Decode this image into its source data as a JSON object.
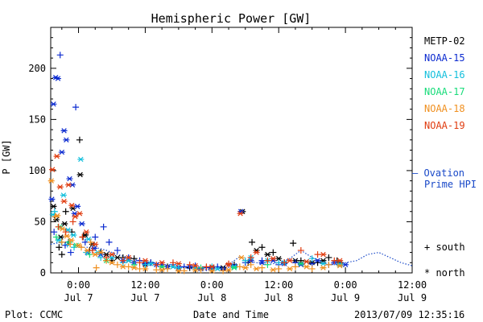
{
  "chart_data": {
    "type": "scatter",
    "title": "Hemispheric Power [GW]",
    "xlabel": "Date and Time",
    "ylabel": "P [GW]",
    "ylim": [
      0,
      240
    ],
    "yticks": [
      0,
      50,
      100,
      150,
      200
    ],
    "xlim_hours_from_jul7": [
      -5,
      60
    ],
    "xticks": [
      {
        "time": "0:00",
        "date": "Jul 7",
        "hour": 0
      },
      {
        "time": "12:00",
        "date": "Jul 7",
        "hour": 12
      },
      {
        "time": "0:00",
        "date": "Jul 8",
        "hour": 24
      },
      {
        "time": "12:00",
        "date": "Jul 8",
        "hour": 36
      },
      {
        "time": "0:00",
        "date": "Jul 9",
        "hour": 48
      },
      {
        "time": "12:00",
        "date": "Jul 9",
        "hour": 60
      }
    ],
    "series": [
      {
        "name": "METP-02",
        "color": "#000000",
        "south": [
          [
            -4.2,
            55
          ],
          [
            -3.5,
            25
          ],
          [
            -3.0,
            18
          ],
          [
            -2.3,
            60
          ],
          [
            -1.8,
            30
          ],
          [
            -1.2,
            40
          ],
          [
            0.2,
            130
          ],
          [
            0.8,
            35
          ],
          [
            2,
            22
          ],
          [
            4,
            20
          ],
          [
            6,
            12
          ],
          [
            8,
            15
          ],
          [
            10,
            14
          ],
          [
            13,
            10
          ],
          [
            16,
            6
          ],
          [
            20,
            5
          ],
          [
            24,
            4
          ],
          [
            28,
            8
          ],
          [
            30.5,
            10
          ],
          [
            31.2,
            30
          ],
          [
            33,
            25
          ],
          [
            35,
            20
          ],
          [
            37,
            10
          ],
          [
            38.6,
            29
          ],
          [
            40,
            12
          ],
          [
            43,
            10
          ],
          [
            45,
            15
          ],
          [
            46.5,
            12
          ]
        ],
        "north": [
          [
            -4.5,
            65
          ],
          [
            -4.0,
            52
          ],
          [
            -3.2,
            35
          ],
          [
            -2.5,
            48
          ],
          [
            -1.0,
            63
          ],
          [
            0.3,
            96
          ],
          [
            1.2,
            37
          ],
          [
            2.5,
            28
          ],
          [
            5,
            18
          ],
          [
            7,
            15
          ],
          [
            9,
            12
          ],
          [
            12,
            8
          ],
          [
            15,
            6
          ],
          [
            18,
            5
          ],
          [
            22,
            4
          ],
          [
            26,
            5
          ],
          [
            29.5,
            60
          ],
          [
            32,
            22
          ],
          [
            34,
            18
          ],
          [
            36,
            14
          ],
          [
            39,
            12
          ],
          [
            42,
            10
          ],
          [
            44,
            12
          ],
          [
            47,
            10
          ]
        ]
      },
      {
        "name": "NOAA-15",
        "color": "#0c2bd0",
        "south": [
          [
            -4.4,
            40
          ],
          [
            -3.3,
            213
          ],
          [
            -2.4,
            27
          ],
          [
            -1.4,
            20
          ],
          [
            -0.5,
            162
          ],
          [
            1.2,
            30
          ],
          [
            3,
            35
          ],
          [
            4.5,
            45
          ],
          [
            5.5,
            30
          ],
          [
            7,
            22
          ],
          [
            9,
            15
          ],
          [
            11,
            12
          ],
          [
            13,
            10
          ],
          [
            15,
            8
          ],
          [
            17,
            8
          ],
          [
            19,
            6
          ],
          [
            21,
            7
          ],
          [
            23,
            5
          ],
          [
            25,
            6
          ],
          [
            27,
            8
          ],
          [
            30,
            10
          ],
          [
            33,
            12
          ],
          [
            36,
            8
          ],
          [
            39,
            10
          ],
          [
            42,
            9
          ],
          [
            45,
            8
          ]
        ],
        "north": [
          [
            -4.8,
            72
          ],
          [
            -4.5,
            165
          ],
          [
            -4.1,
            191
          ],
          [
            -3.7,
            190
          ],
          [
            -3.0,
            118
          ],
          [
            -2.6,
            139
          ],
          [
            -2.2,
            130
          ],
          [
            -1.6,
            92
          ],
          [
            -1.1,
            86
          ],
          [
            -0.7,
            58
          ],
          [
            -0.2,
            65
          ],
          [
            0.6,
            48
          ],
          [
            1.6,
            20
          ],
          [
            2.8,
            24
          ],
          [
            4,
            18
          ],
          [
            6,
            15
          ],
          [
            8,
            12
          ],
          [
            10,
            10
          ],
          [
            12,
            9
          ],
          [
            14,
            8
          ],
          [
            16,
            6
          ],
          [
            18,
            5
          ],
          [
            20,
            6
          ],
          [
            22,
            4
          ],
          [
            24,
            5
          ],
          [
            26,
            4
          ],
          [
            28,
            7
          ],
          [
            29.2,
            60
          ],
          [
            31,
            12
          ],
          [
            33,
            10
          ],
          [
            35,
            12
          ],
          [
            37,
            9
          ],
          [
            40,
            8
          ],
          [
            43,
            12
          ],
          [
            46,
            10
          ],
          [
            48,
            8
          ]
        ]
      },
      {
        "name": "NOAA-16",
        "color": "#12bfdc",
        "south": [
          [
            -4.3,
            60
          ],
          [
            -3.1,
            30
          ],
          [
            -2.0,
            28
          ],
          [
            -0.8,
            25
          ],
          [
            1.4,
            20
          ],
          [
            4,
            15
          ],
          [
            8,
            10
          ],
          [
            12,
            8
          ],
          [
            18,
            5
          ],
          [
            24,
            6
          ],
          [
            30,
            12
          ],
          [
            36,
            10
          ],
          [
            42,
            14
          ],
          [
            47,
            9
          ]
        ],
        "north": [
          [
            -4.6,
            57
          ],
          [
            -3.6,
            32
          ],
          [
            -2.7,
            76
          ],
          [
            -1.9,
            42
          ],
          [
            -0.9,
            37
          ],
          [
            0.4,
            111
          ],
          [
            1.8,
            33
          ],
          [
            3.5,
            20
          ],
          [
            6,
            15
          ],
          [
            9,
            12
          ],
          [
            13,
            9
          ],
          [
            17,
            6
          ],
          [
            21,
            5
          ],
          [
            25,
            4
          ],
          [
            28,
            6
          ],
          [
            31,
            15
          ],
          [
            34,
            12
          ],
          [
            37,
            10
          ],
          [
            41,
            11
          ],
          [
            44,
            9
          ],
          [
            47,
            8
          ]
        ]
      },
      {
        "name": "NOAA-17",
        "color": "#18dc7a",
        "south": [
          [
            -4.0,
            35
          ],
          [
            -1.7,
            30
          ],
          [
            2,
            18
          ],
          [
            10,
            8
          ],
          [
            22,
            5
          ],
          [
            34,
            8
          ]
        ],
        "north": [
          [
            -3.4,
            45
          ],
          [
            -0.4,
            27
          ],
          [
            5,
            12
          ],
          [
            15,
            6
          ],
          [
            28,
            5
          ],
          [
            40,
            9
          ]
        ]
      },
      {
        "name": "NOAA-18",
        "color": "#f09020",
        "south": [
          [
            -4.2,
            55
          ],
          [
            -3.0,
            30
          ],
          [
            -1.5,
            28
          ],
          [
            0.5,
            25
          ],
          [
            2.2,
            30
          ],
          [
            3.2,
            5
          ],
          [
            5,
            12
          ],
          [
            7,
            8
          ],
          [
            9,
            6
          ],
          [
            11,
            4
          ],
          [
            14,
            3
          ],
          [
            16,
            4
          ],
          [
            19,
            2
          ],
          [
            22,
            3
          ],
          [
            26,
            2
          ],
          [
            29,
            6
          ],
          [
            31,
            8
          ],
          [
            33,
            5
          ],
          [
            36,
            4
          ],
          [
            39,
            6
          ],
          [
            42,
            4
          ],
          [
            45,
            8
          ]
        ],
        "north": [
          [
            -4.9,
            90
          ],
          [
            -3.8,
            56
          ],
          [
            -2.9,
            43
          ],
          [
            -2.1,
            36
          ],
          [
            -1.3,
            32
          ],
          [
            0,
            27
          ],
          [
            1.6,
            22
          ],
          [
            3,
            18
          ],
          [
            4,
            20
          ],
          [
            6,
            10
          ],
          [
            8,
            6
          ],
          [
            10,
            5
          ],
          [
            12,
            4
          ],
          [
            15,
            3
          ],
          [
            18,
            2
          ],
          [
            21,
            3
          ],
          [
            24,
            2
          ],
          [
            27,
            3
          ],
          [
            29.3,
            15
          ],
          [
            30,
            5
          ],
          [
            32,
            4
          ],
          [
            35,
            3
          ],
          [
            38,
            4
          ],
          [
            41,
            6
          ],
          [
            44,
            5
          ],
          [
            47,
            7
          ]
        ]
      },
      {
        "name": "NOAA-19",
        "color": "#e03c10",
        "south": [
          [
            -3.6,
            45
          ],
          [
            -2.3,
            40
          ],
          [
            -1.0,
            50
          ],
          [
            0.7,
            35
          ],
          [
            2.5,
            22
          ],
          [
            5,
            15
          ],
          [
            8,
            12
          ],
          [
            11,
            10
          ],
          [
            14,
            8
          ],
          [
            17,
            10
          ],
          [
            20,
            8
          ],
          [
            23,
            6
          ],
          [
            27,
            9
          ],
          [
            31,
            15
          ],
          [
            34,
            12
          ],
          [
            37,
            10
          ],
          [
            40,
            22
          ],
          [
            43,
            18
          ],
          [
            46,
            12
          ]
        ],
        "north": [
          [
            -4.7,
            101
          ],
          [
            -3.9,
            114
          ],
          [
            -3.3,
            84
          ],
          [
            -2.6,
            70
          ],
          [
            -1.8,
            86
          ],
          [
            -1.2,
            66
          ],
          [
            -0.6,
            55
          ],
          [
            0.2,
            58
          ],
          [
            1.4,
            40
          ],
          [
            3,
            28
          ],
          [
            6,
            18
          ],
          [
            9,
            15
          ],
          [
            12,
            12
          ],
          [
            15,
            10
          ],
          [
            18,
            9
          ],
          [
            21,
            7
          ],
          [
            24,
            6
          ],
          [
            27,
            8
          ],
          [
            29.1,
            58
          ],
          [
            32,
            20
          ],
          [
            35,
            14
          ],
          [
            38,
            12
          ],
          [
            41,
            11
          ],
          [
            44,
            18
          ],
          [
            47,
            12
          ]
        ]
      }
    ],
    "ovation": {
      "name": "Ovation Prime HPI",
      "color": "#1848c8",
      "points": [
        [
          -5,
          28
        ],
        [
          -3,
          30
        ],
        [
          -1,
          28
        ],
        [
          1,
          25
        ],
        [
          3,
          25
        ],
        [
          5,
          22
        ],
        [
          7,
          18
        ],
        [
          9,
          15
        ],
        [
          11,
          12
        ],
        [
          13,
          10
        ],
        [
          15,
          8
        ],
        [
          17,
          6
        ],
        [
          19,
          5
        ],
        [
          21,
          4
        ],
        [
          23,
          3
        ],
        [
          25,
          4
        ],
        [
          27,
          8
        ],
        [
          29,
          16
        ],
        [
          30,
          12
        ],
        [
          32,
          10
        ],
        [
          34,
          8
        ],
        [
          36,
          10
        ],
        [
          38,
          14
        ],
        [
          40,
          22
        ],
        [
          42,
          15
        ],
        [
          44,
          10
        ],
        [
          46,
          8
        ],
        [
          48,
          10
        ],
        [
          50,
          12
        ],
        [
          52,
          18
        ],
        [
          54,
          20
        ],
        [
          56,
          15
        ],
        [
          58,
          10
        ],
        [
          60,
          7
        ]
      ]
    }
  },
  "legend": {
    "items": [
      {
        "label": "METP-02",
        "color": "#000000"
      },
      {
        "label": "NOAA-15",
        "color": "#0c2bd0"
      },
      {
        "label": "NOAA-16",
        "color": "#12bfdc"
      },
      {
        "label": "NOAA-17",
        "color": "#18dc7a"
      },
      {
        "label": "NOAA-18",
        "color": "#f09020"
      },
      {
        "label": "NOAA-19",
        "color": "#e03c10"
      }
    ],
    "ovation_line1": "– Ovation",
    "ovation_line2": "Prime HPI",
    "south_label": "+ south",
    "north_label": "* north"
  },
  "footer": {
    "plot_credit": "Plot: CCMC",
    "timestamp": "2013/07/09 12:35:16"
  }
}
